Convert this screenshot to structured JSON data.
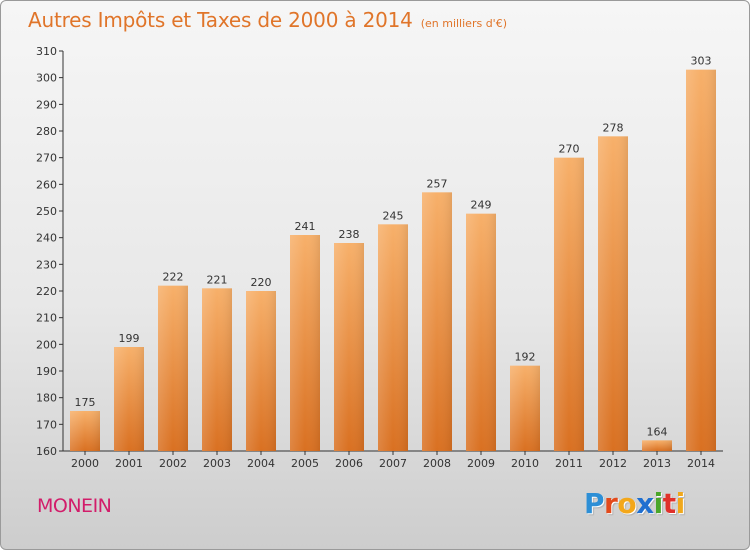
{
  "chart_data": {
    "type": "bar",
    "title": "Autres Impôts et Taxes de 2000 à 2014",
    "subtitle": "(en milliers d'€)",
    "categories": [
      "2000",
      "2001",
      "2002",
      "2003",
      "2004",
      "2005",
      "2006",
      "2007",
      "2008",
      "2009",
      "2010",
      "2011",
      "2012",
      "2013",
      "2014"
    ],
    "values": [
      175,
      199,
      222,
      221,
      220,
      241,
      238,
      245,
      257,
      249,
      192,
      270,
      278,
      164,
      303
    ],
    "ylim": [
      160,
      310
    ],
    "yticks": [
      160,
      170,
      180,
      190,
      200,
      210,
      220,
      230,
      240,
      250,
      260,
      270,
      280,
      290,
      300,
      310
    ],
    "grid": false,
    "bar_color": "#ec8a35",
    "bar_color_dark": "#d97021",
    "bar_color_light": "#f7b06a",
    "axis_color": "#333333"
  },
  "location": "MONEIN",
  "brand": "Proxiti",
  "colors": {
    "title": "#e0752a",
    "location": "#d21d6a"
  }
}
